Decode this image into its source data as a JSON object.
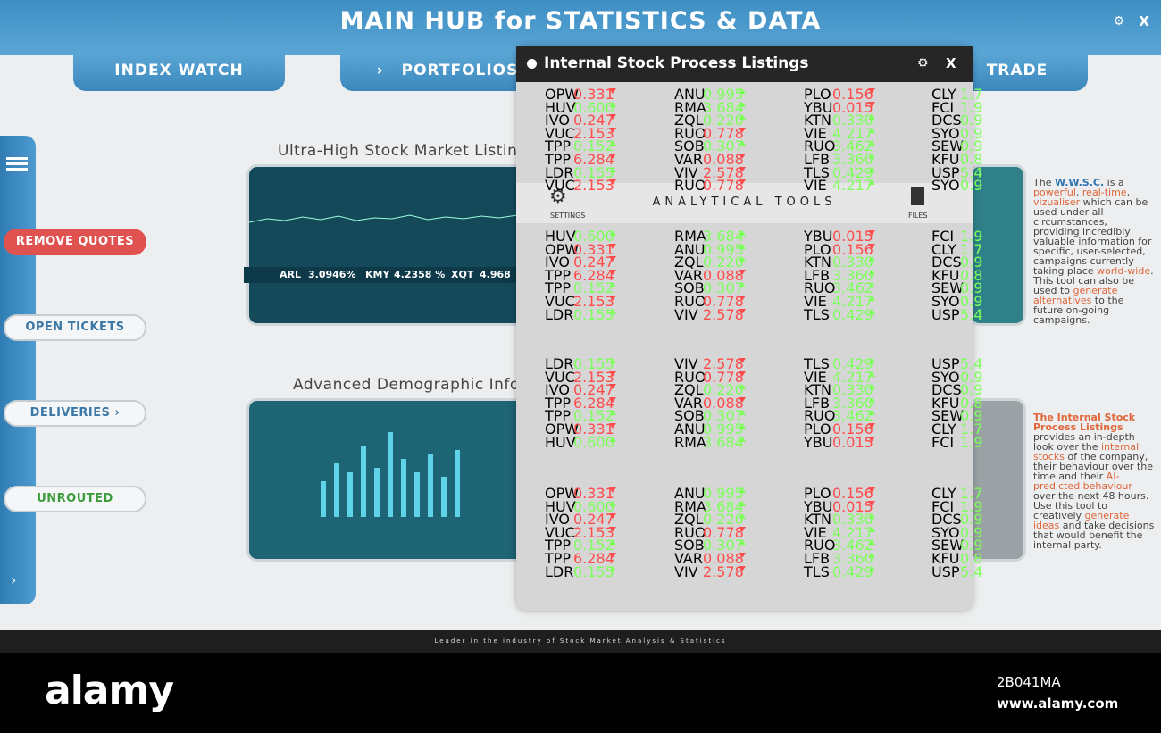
{
  "header": {
    "title": "MAIN HUB for STATISTICS & DATA",
    "close": "X"
  },
  "tabs": [
    "INDEX WATCH",
    "PORTFOLIOS",
    "TRADE"
  ],
  "sidebar": [
    "REMOVE QUOTES",
    "OPEN TICKETS",
    "DELIVERIES",
    "UNROUTED"
  ],
  "sections": [
    {
      "title": "Ultra-High Stock Market Listings",
      "ticker": [
        "ARL",
        "3.0946%",
        "KMY",
        "4.2358 %",
        "XQT",
        "4.968"
      ]
    },
    {
      "title": "Advanced Demographic Info...ngs"
    }
  ],
  "popup": {
    "title": "Internal Stock Process Listings",
    "close": "X",
    "tools": "ANALYTICAL TOOLS",
    "settings": "SETTINGS",
    "files": "FILES",
    "blocks": [
      [
        [
          [
            "OPW",
            "0.331",
            "down"
          ],
          [
            "ANU",
            "0.995",
            "up"
          ],
          [
            "PLO",
            "0.156",
            "down"
          ],
          [
            "CLY",
            "1.7"
          ]
        ],
        [
          [
            "HUV",
            "0.600",
            "up"
          ],
          [
            "RMA",
            "3.684",
            "up"
          ],
          [
            "YBU",
            "0.015",
            "down"
          ],
          [
            "FCI",
            "1.9"
          ]
        ],
        [
          [
            "IVO",
            "0.247",
            "down"
          ],
          [
            "ZQL",
            "0.220",
            "up"
          ],
          [
            "KTN",
            "0.330",
            "up"
          ],
          [
            "DCS",
            "0.9"
          ]
        ],
        [
          [
            "VUC",
            "2.153",
            "down"
          ],
          [
            "RUO",
            "0.778",
            "down"
          ],
          [
            "VIE",
            "4.217",
            "up"
          ],
          [
            "SYO",
            "0.9"
          ]
        ],
        [
          [
            "TPP",
            "0.152",
            "up"
          ],
          [
            "SOB",
            "0.307",
            "up"
          ],
          [
            "RUO",
            "3.462",
            "up"
          ],
          [
            "SEW",
            "0.9"
          ]
        ],
        [
          [
            "TPP",
            "6.284",
            "down"
          ],
          [
            "VAR",
            "0.088",
            "down"
          ],
          [
            "LFB",
            "3.360",
            "up"
          ],
          [
            "KFU",
            "0.8"
          ]
        ],
        [
          [
            "LDR",
            "0.155",
            "up"
          ],
          [
            "VIV",
            "2.578",
            "down"
          ],
          [
            "TLS",
            "0.429",
            "up"
          ],
          [
            "USP",
            "5.4"
          ]
        ],
        [
          [
            "VUC",
            "2.153",
            "down"
          ],
          [
            "RUO",
            "0.778",
            "down"
          ],
          [
            "VIE",
            "4.217",
            "up"
          ],
          [
            "SYO",
            "0.9"
          ]
        ]
      ],
      [
        [
          [
            "HUV",
            "0.600",
            "up"
          ],
          [
            "RMA",
            "3.684",
            "up"
          ],
          [
            "YBU",
            "0.015",
            "down"
          ],
          [
            "FCI",
            "1.9"
          ]
        ],
        [
          [
            "OPW",
            "0.331",
            "down"
          ],
          [
            "ANU",
            "0.995",
            "up"
          ],
          [
            "PLO",
            "0.156",
            "down"
          ],
          [
            "CLY",
            "1.7"
          ]
        ],
        [
          [
            "IVO",
            "0.247",
            "down"
          ],
          [
            "ZQL",
            "0.220",
            "up"
          ],
          [
            "KTN",
            "0.330",
            "up"
          ],
          [
            "DCS",
            "0.9"
          ]
        ],
        [
          [
            "TPP",
            "6.284",
            "down"
          ],
          [
            "VAR",
            "0.088",
            "down"
          ],
          [
            "LFB",
            "3.360",
            "up"
          ],
          [
            "KFU",
            "0.8"
          ]
        ],
        [
          [
            "TPP",
            "0.152",
            "up"
          ],
          [
            "SOB",
            "0.307",
            "up"
          ],
          [
            "RUO",
            "3.462",
            "up"
          ],
          [
            "SEW",
            "0.9"
          ]
        ],
        [
          [
            "VUC",
            "2.153",
            "down"
          ],
          [
            "RUO",
            "0.778",
            "down"
          ],
          [
            "VIE",
            "4.217",
            "up"
          ],
          [
            "SYO",
            "0.9"
          ]
        ],
        [
          [
            "LDR",
            "0.155",
            "up"
          ],
          [
            "VIV",
            "2.578",
            "down"
          ],
          [
            "TLS",
            "0.429",
            "up"
          ],
          [
            "USP",
            "5.4"
          ]
        ]
      ],
      [
        [
          [
            "LDR",
            "0.155",
            "up"
          ],
          [
            "VIV",
            "2.578",
            "down"
          ],
          [
            "TLS",
            "0.429",
            "up"
          ],
          [
            "USP",
            "5.4"
          ]
        ],
        [
          [
            "VUC",
            "2.153",
            "down"
          ],
          [
            "RUO",
            "0.778",
            "down"
          ],
          [
            "VIE",
            "4.217",
            "up"
          ],
          [
            "SYO",
            "0.9"
          ]
        ],
        [
          [
            "IVO",
            "0.247",
            "down"
          ],
          [
            "ZQL",
            "0.220",
            "up"
          ],
          [
            "KTN",
            "0.330",
            "up"
          ],
          [
            "DCS",
            "0.9"
          ]
        ],
        [
          [
            "TPP",
            "6.284",
            "down"
          ],
          [
            "VAR",
            "0.088",
            "down"
          ],
          [
            "LFB",
            "3.360",
            "up"
          ],
          [
            "KFU",
            "0.8"
          ]
        ],
        [
          [
            "TPP",
            "0.152",
            "up"
          ],
          [
            "SOB",
            "0.307",
            "up"
          ],
          [
            "RUO",
            "3.462",
            "up"
          ],
          [
            "SEW",
            "0.9"
          ]
        ],
        [
          [
            "OPW",
            "0.331",
            "down"
          ],
          [
            "ANU",
            "0.995",
            "up"
          ],
          [
            "PLO",
            "0.156",
            "down"
          ],
          [
            "CLY",
            "1.7"
          ]
        ],
        [
          [
            "HUV",
            "0.600",
            "up"
          ],
          [
            "RMA",
            "3.684",
            "up"
          ],
          [
            "YBU",
            "0.015",
            "down"
          ],
          [
            "FCI",
            "1.9"
          ]
        ]
      ],
      [
        [
          [
            "OPW",
            "0.331",
            "down"
          ],
          [
            "ANU",
            "0.995",
            "up"
          ],
          [
            "PLO",
            "0.156",
            "down"
          ],
          [
            "CLY",
            "1.7"
          ]
        ],
        [
          [
            "HUV",
            "0.600",
            "up"
          ],
          [
            "RMA",
            "3.684",
            "up"
          ],
          [
            "YBU",
            "0.015",
            "down"
          ],
          [
            "FCI",
            "1.9"
          ]
        ],
        [
          [
            "IVO",
            "0.247",
            "down"
          ],
          [
            "ZQL",
            "0.220",
            "up"
          ],
          [
            "KTN",
            "0.330",
            "up"
          ],
          [
            "DCS",
            "0.9"
          ]
        ],
        [
          [
            "VUC",
            "2.153",
            "down"
          ],
          [
            "RUO",
            "0.778",
            "down"
          ],
          [
            "VIE",
            "4.217",
            "up"
          ],
          [
            "SYO",
            "0.9"
          ]
        ],
        [
          [
            "TPP",
            "0.152",
            "up"
          ],
          [
            "SOB",
            "0.307",
            "up"
          ],
          [
            "RUO",
            "3.462",
            "up"
          ],
          [
            "SEW",
            "0.9"
          ]
        ],
        [
          [
            "TPP",
            "6.284",
            "down"
          ],
          [
            "VAR",
            "0.088",
            "down"
          ],
          [
            "LFB",
            "3.360",
            "up"
          ],
          [
            "KFU",
            "0.8"
          ]
        ],
        [
          [
            "LDR",
            "0.155",
            "up"
          ],
          [
            "VIV",
            "2.578",
            "down"
          ],
          [
            "TLS",
            "0.429",
            "up"
          ],
          [
            "USP",
            "5.4"
          ]
        ]
      ]
    ]
  },
  "descriptions": [
    [
      [
        "The ",
        0
      ],
      [
        "W.W.S.C.",
        2
      ],
      [
        " is a ",
        0
      ],
      [
        "powerful",
        1
      ],
      [
        ", ",
        0
      ],
      [
        "real-time",
        1
      ],
      [
        ", ",
        0
      ],
      [
        "vizualiser",
        1
      ],
      [
        " which can be used under all circumstances, providing incredibly valuable information for specific, user-selected, campaigns currently taking place ",
        0
      ],
      [
        "world-wide",
        1
      ],
      [
        ". This tool can also be used to ",
        0
      ],
      [
        "generate alternatives",
        1
      ],
      [
        " to the future on-going campaigns.",
        0
      ]
    ],
    [
      [
        "The Internal Stock Process Listings",
        3
      ],
      [
        " provides an in-depth look over the ",
        0
      ],
      [
        "internal stocks",
        1
      ],
      [
        " of the company, their behaviour over the time and their ",
        0
      ],
      [
        "AI-predicted behaviour",
        1
      ],
      [
        " over the next 48 hours. Use this tool to creatively ",
        0
      ],
      [
        "generate ideas",
        1
      ],
      [
        " and take decisions that would benefit the internal party.",
        0
      ]
    ]
  ],
  "footer": "Leader in the industry of Stock Market Analysis & Statistics",
  "watermark": {
    "logo": "alamy",
    "id": "2B041MA",
    "url": "www.alamy.com"
  }
}
